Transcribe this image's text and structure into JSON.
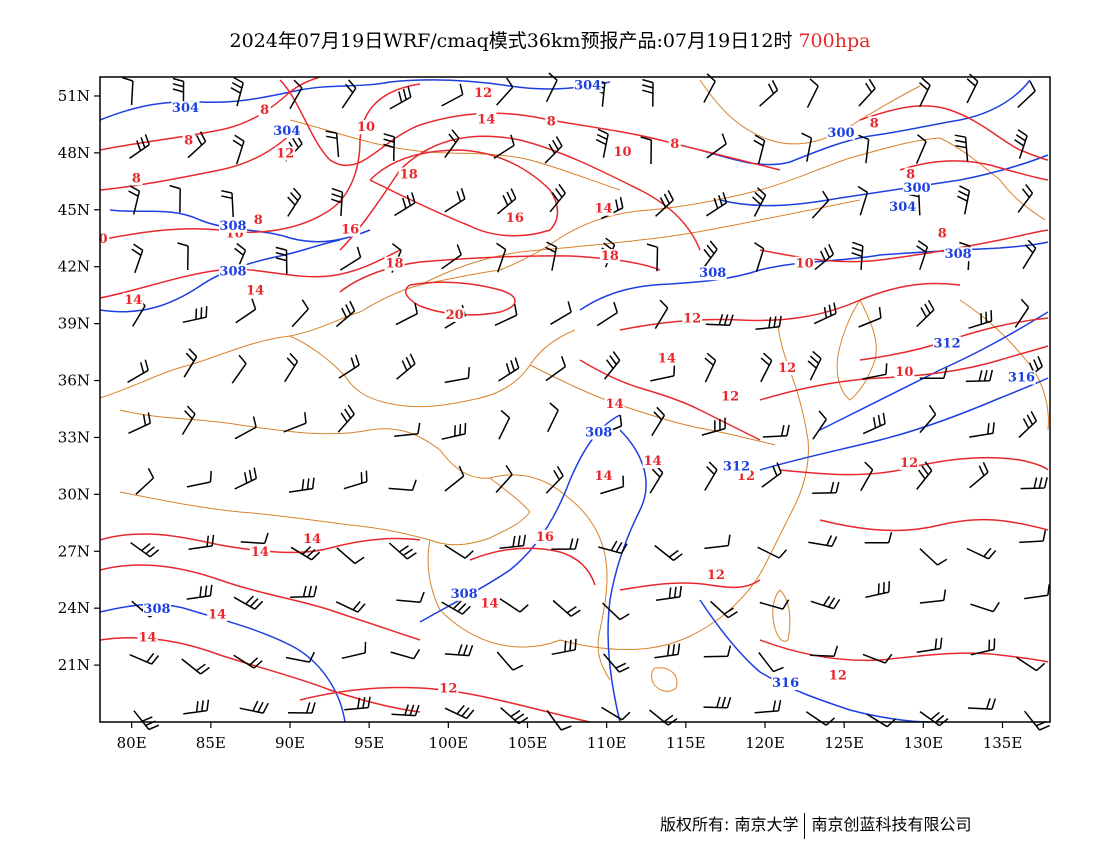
{
  "title": {
    "text": "2024年07月19日WRF/cmaq模式36km预报产品:07月19日12时",
    "level": "700hpa",
    "level_color": "#e8282d"
  },
  "map": {
    "projection": "lat-lon",
    "lon_range": [
      78,
      138
    ],
    "lat_range": [
      18,
      52
    ],
    "x_ticks": [
      "80E",
      "85E",
      "90E",
      "95E",
      "100E",
      "105E",
      "110E",
      "115E",
      "120E",
      "125E",
      "130E",
      "135E"
    ],
    "x_tick_values": [
      80,
      85,
      90,
      95,
      100,
      105,
      110,
      115,
      120,
      125,
      130,
      135
    ],
    "y_ticks": [
      "21N",
      "24N",
      "27N",
      "30N",
      "33N",
      "36N",
      "39N",
      "42N",
      "45N",
      "48N",
      "51N"
    ],
    "y_tick_values": [
      21,
      24,
      27,
      30,
      33,
      36,
      39,
      42,
      45,
      48,
      51
    ],
    "colors": {
      "temperature": "#e8282d",
      "geopotential": "#1c3fe0",
      "boundary": "#d9822b",
      "wind": "#000000"
    },
    "fields": {
      "temperature_contours": "red",
      "geopotential_height_contours": "blue",
      "wind_barbs": "black",
      "boundaries": "orange"
    },
    "temperature_labels": [
      {
        "text": "8",
        "lon": 88.4,
        "lat": 50.1
      },
      {
        "text": "10",
        "lon": 94.8,
        "lat": 49.2
      },
      {
        "text": "12",
        "lon": 102.2,
        "lat": 51.0
      },
      {
        "text": "14",
        "lon": 102.4,
        "lat": 49.6
      },
      {
        "text": "12",
        "lon": 89.7,
        "lat": 47.8
      },
      {
        "text": "8",
        "lon": 83.6,
        "lat": 48.5
      },
      {
        "text": "8",
        "lon": 80.3,
        "lat": 46.5
      },
      {
        "text": "8",
        "lon": 88.0,
        "lat": 44.3
      },
      {
        "text": "10",
        "lon": 86.5,
        "lat": 43.6
      },
      {
        "text": "0",
        "lon": 78.2,
        "lat": 43.3
      },
      {
        "text": "16",
        "lon": 93.8,
        "lat": 43.8
      },
      {
        "text": "18",
        "lon": 97.5,
        "lat": 46.7
      },
      {
        "text": "16",
        "lon": 104.2,
        "lat": 44.4
      },
      {
        "text": "18",
        "lon": 96.6,
        "lat": 42.0
      },
      {
        "text": "18",
        "lon": 110.2,
        "lat": 42.4
      },
      {
        "text": "14",
        "lon": 80.1,
        "lat": 40.1
      },
      {
        "text": "14",
        "lon": 87.8,
        "lat": 40.6
      },
      {
        "text": "20",
        "lon": 100.4,
        "lat": 39.3
      },
      {
        "text": "8",
        "lon": 106.5,
        "lat": 49.5
      },
      {
        "text": "10",
        "lon": 111.0,
        "lat": 47.9
      },
      {
        "text": "8",
        "lon": 114.3,
        "lat": 48.3
      },
      {
        "text": "14",
        "lon": 109.8,
        "lat": 44.9
      },
      {
        "text": "8",
        "lon": 126.9,
        "lat": 49.4
      },
      {
        "text": "8",
        "lon": 129.2,
        "lat": 46.7
      },
      {
        "text": "8",
        "lon": 131.2,
        "lat": 43.6
      },
      {
        "text": "10",
        "lon": 122.5,
        "lat": 42.0
      },
      {
        "text": "12",
        "lon": 115.4,
        "lat": 39.1
      },
      {
        "text": "14",
        "lon": 113.8,
        "lat": 37.0
      },
      {
        "text": "12",
        "lon": 121.4,
        "lat": 36.5
      },
      {
        "text": "12",
        "lon": 117.8,
        "lat": 35.0
      },
      {
        "text": "14",
        "lon": 110.5,
        "lat": 34.6
      },
      {
        "text": "10",
        "lon": 128.8,
        "lat": 36.3
      },
      {
        "text": "14",
        "lon": 112.9,
        "lat": 31.6
      },
      {
        "text": "14",
        "lon": 109.8,
        "lat": 30.8
      },
      {
        "text": "12",
        "lon": 118.8,
        "lat": 30.8
      },
      {
        "text": "12",
        "lon": 129.1,
        "lat": 31.5
      },
      {
        "text": "14",
        "lon": 91.4,
        "lat": 27.5
      },
      {
        "text": "14",
        "lon": 88.1,
        "lat": 26.8
      },
      {
        "text": "16",
        "lon": 106.1,
        "lat": 27.6
      },
      {
        "text": "14",
        "lon": 102.6,
        "lat": 24.1
      },
      {
        "text": "14",
        "lon": 85.4,
        "lat": 23.5
      },
      {
        "text": "14",
        "lon": 81.0,
        "lat": 22.3
      },
      {
        "text": "12",
        "lon": 116.9,
        "lat": 25.6
      },
      {
        "text": "12",
        "lon": 100.0,
        "lat": 19.6
      },
      {
        "text": "12",
        "lon": 124.6,
        "lat": 20.3
      }
    ],
    "height_labels": [
      {
        "text": "304",
        "lon": 83.4,
        "lat": 50.2
      },
      {
        "text": "304",
        "lon": 89.8,
        "lat": 49.0
      },
      {
        "text": "304",
        "lon": 108.8,
        "lat": 51.4
      },
      {
        "text": "300",
        "lon": 124.8,
        "lat": 48.9
      },
      {
        "text": "300",
        "lon": 129.6,
        "lat": 46.0
      },
      {
        "text": "304",
        "lon": 128.7,
        "lat": 45.0
      },
      {
        "text": "308",
        "lon": 86.4,
        "lat": 44.0
      },
      {
        "text": "308",
        "lon": 86.4,
        "lat": 41.6
      },
      {
        "text": "308",
        "lon": 116.7,
        "lat": 41.5
      },
      {
        "text": "308",
        "lon": 132.2,
        "lat": 42.5
      },
      {
        "text": "312",
        "lon": 131.5,
        "lat": 37.8
      },
      {
        "text": "316",
        "lon": 136.2,
        "lat": 36.0
      },
      {
        "text": "308",
        "lon": 109.5,
        "lat": 33.1
      },
      {
        "text": "312",
        "lon": 118.2,
        "lat": 31.3
      },
      {
        "text": "308",
        "lon": 101.0,
        "lat": 24.6
      },
      {
        "text": "308",
        "lon": 81.6,
        "lat": 23.8
      },
      {
        "text": "316",
        "lon": 121.3,
        "lat": 19.9
      }
    ]
  },
  "footer": {
    "left": "版权所有: 南京大学",
    "right": "南京创蓝科技有限公司"
  }
}
